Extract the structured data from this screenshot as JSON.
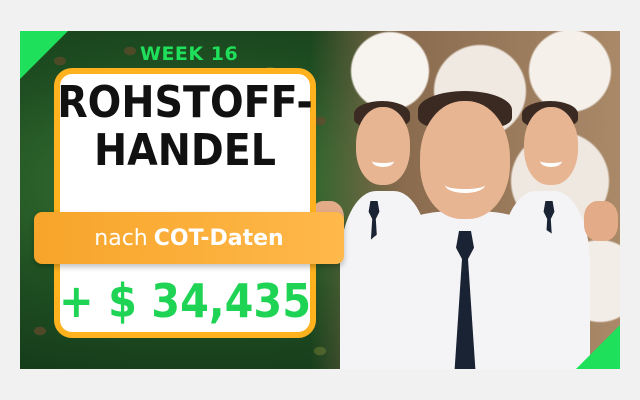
{
  "thumbnail": {
    "week_label": "WEEK 16",
    "title_line1": "ROHSTOFF-",
    "title_line2": "HANDEL",
    "banner_prefix": "nach",
    "banner_bold": "COT-Daten",
    "amount": "+ $ 34,435"
  },
  "colors": {
    "accent_green": "#1fe05a",
    "card_border": "#ffb21e",
    "banner": "#f7a52a",
    "amount_green": "#1fd455"
  }
}
